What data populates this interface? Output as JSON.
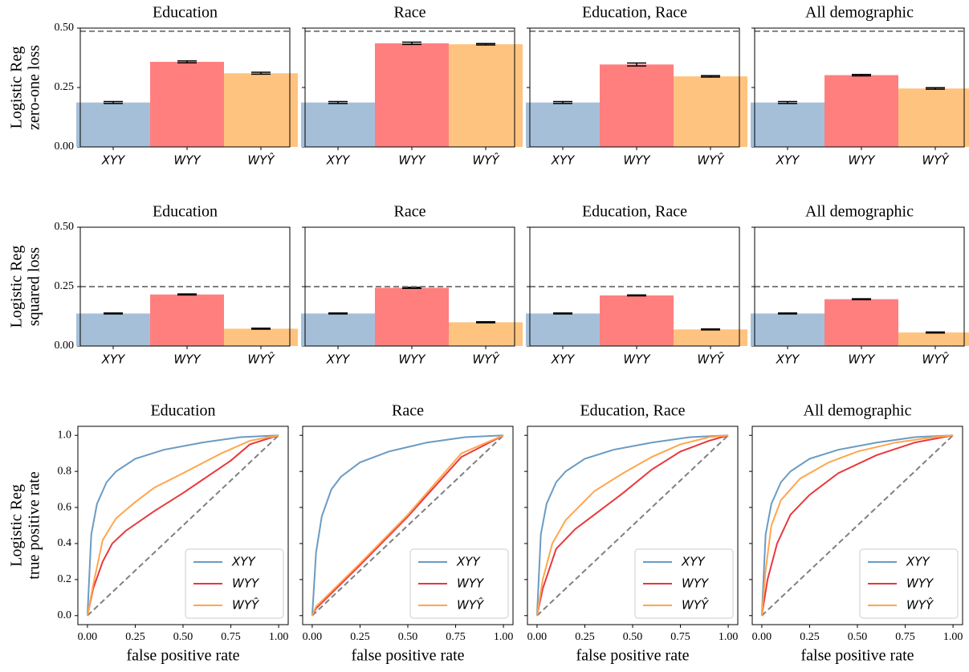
{
  "chart_data": [
    {
      "type": "bar",
      "title": "Education",
      "ylabel": [
        "Logistic Reg",
        "zero-one loss"
      ],
      "categories": [
        "XYY",
        "WYY",
        "WYŶ"
      ],
      "values": [
        0.187,
        0.358,
        0.31
      ],
      "errors": [
        0.004,
        0.004,
        0.004
      ],
      "colors": [
        "#a6bfd9",
        "#ff7f7f",
        "#ffc380"
      ],
      "ylim": [
        0,
        0.5
      ],
      "yticks": [
        {
          "value": 0,
          "label": "0.00"
        },
        0.25,
        {
          "value": 0.5,
          "label": "0.50"
        }
      ],
      "reference_line": 0.487
    },
    {
      "type": "bar",
      "title": "Race",
      "categories": [
        "XYY",
        "WYY",
        "WYŶ"
      ],
      "values": [
        0.187,
        0.436,
        0.432
      ],
      "errors": [
        0.004,
        0.005,
        0.003
      ],
      "colors": [
        "#a6bfd9",
        "#ff7f7f",
        "#ffc380"
      ],
      "ylim": [
        0,
        0.5
      ],
      "yticks": [
        {
          "value": 0,
          "label": "0.00"
        },
        0.25,
        {
          "value": 0.5,
          "label": "0.50"
        }
      ],
      "reference_line": 0.487
    },
    {
      "type": "bar",
      "title": "Education, Race",
      "categories": [
        "XYY",
        "WYY",
        "WYŶ"
      ],
      "values": [
        0.187,
        0.347,
        0.297
      ],
      "errors": [
        0.004,
        0.006,
        0.003
      ],
      "colors": [
        "#a6bfd9",
        "#ff7f7f",
        "#ffc380"
      ],
      "ylim": [
        0,
        0.5
      ],
      "yticks": [
        {
          "value": 0,
          "label": "0.00"
        },
        0.25,
        {
          "value": 0.5,
          "label": "0.50"
        }
      ],
      "reference_line": 0.487
    },
    {
      "type": "bar",
      "title": "All demographic",
      "categories": [
        "XYY",
        "WYY",
        "WYŶ"
      ],
      "values": [
        0.187,
        0.302,
        0.246
      ],
      "errors": [
        0.004,
        0.003,
        0.003
      ],
      "colors": [
        "#a6bfd9",
        "#ff7f7f",
        "#ffc380"
      ],
      "ylim": [
        0,
        0.5
      ],
      "yticks": [
        {
          "value": 0,
          "label": "0.00"
        },
        0.25,
        {
          "value": 0.5,
          "label": "0.50"
        }
      ],
      "reference_line": 0.487
    },
    {
      "type": "bar",
      "title": "Education",
      "ylabel": [
        "Logistic Reg",
        "squared loss"
      ],
      "categories": [
        "XYY",
        "WYY",
        "WYŶ"
      ],
      "values": [
        0.137,
        0.217,
        0.073
      ],
      "errors": [
        0.002,
        0.002,
        0.002
      ],
      "colors": [
        "#a6bfd9",
        "#ff7f7f",
        "#ffc380"
      ],
      "ylim": [
        0,
        0.5
      ],
      "yticks": [
        {
          "value": 0,
          "label": "0.00"
        },
        0.25,
        {
          "value": 0.5,
          "label": "0.50"
        }
      ],
      "reference_line": 0.25
    },
    {
      "type": "bar",
      "title": "Race",
      "categories": [
        "XYY",
        "WYY",
        "WYŶ"
      ],
      "values": [
        0.137,
        0.245,
        0.1
      ],
      "errors": [
        0.002,
        0.002,
        0.002
      ],
      "colors": [
        "#a6bfd9",
        "#ff7f7f",
        "#ffc380"
      ],
      "ylim": [
        0,
        0.5
      ],
      "yticks": [
        {
          "value": 0,
          "label": "0.00"
        },
        0.25,
        {
          "value": 0.5,
          "label": "0.50"
        }
      ],
      "reference_line": 0.25
    },
    {
      "type": "bar",
      "title": "Education, Race",
      "categories": [
        "XYY",
        "WYY",
        "WYŶ"
      ],
      "values": [
        0.137,
        0.213,
        0.07
      ],
      "errors": [
        0.002,
        0.002,
        0.002
      ],
      "colors": [
        "#a6bfd9",
        "#ff7f7f",
        "#ffc380"
      ],
      "ylim": [
        0,
        0.5
      ],
      "yticks": [
        {
          "value": 0,
          "label": "0.00"
        },
        0.25,
        {
          "value": 0.5,
          "label": "0.50"
        }
      ],
      "reference_line": 0.25
    },
    {
      "type": "bar",
      "title": "All demographic",
      "categories": [
        "XYY",
        "WYY",
        "WYŶ"
      ],
      "values": [
        0.137,
        0.197,
        0.057
      ],
      "errors": [
        0.002,
        0.002,
        0.002
      ],
      "colors": [
        "#a6bfd9",
        "#ff7f7f",
        "#ffc380"
      ],
      "ylim": [
        0,
        0.5
      ],
      "yticks": [
        {
          "value": 0,
          "label": "0.00"
        },
        0.25,
        {
          "value": 0.5,
          "label": "0.50"
        }
      ],
      "reference_line": 0.25
    },
    {
      "type": "line",
      "title": "Education",
      "ylabel": [
        "Logistic Reg",
        "true positive rate"
      ],
      "xlabel": "false positive rate",
      "xlim": [
        -0.05,
        1.05
      ],
      "ylim": [
        -0.05,
        1.05
      ],
      "xticks": [
        {
          "value": 0,
          "label": "0.00"
        },
        0.25,
        {
          "value": 0.5,
          "label": "0.50"
        },
        0.75,
        {
          "value": 1,
          "label": "1.00"
        }
      ],
      "yticks": [
        {
          "value": 0,
          "label": "0.0"
        },
        0.2,
        0.4,
        0.6,
        0.8,
        {
          "value": 1,
          "label": "1.0"
        }
      ],
      "diagonal": true,
      "legend": "lower right",
      "series": [
        {
          "name": "XYY",
          "color": "#6a9bc3",
          "x": [
            0,
            0.02,
            0.05,
            0.1,
            0.15,
            0.25,
            0.4,
            0.6,
            0.8,
            1
          ],
          "values": [
            0,
            0.45,
            0.62,
            0.74,
            0.8,
            0.87,
            0.92,
            0.96,
            0.99,
            1
          ]
        },
        {
          "name": "WYY",
          "color": "#e8383d",
          "x": [
            0,
            0.03,
            0.08,
            0.13,
            0.2,
            0.35,
            0.5,
            0.75,
            0.85,
            1
          ],
          "values": [
            0,
            0.15,
            0.3,
            0.4,
            0.47,
            0.58,
            0.68,
            0.86,
            0.95,
            1
          ]
        },
        {
          "name": "WYŶ",
          "color": "#ffa64d",
          "x": [
            0,
            0.03,
            0.08,
            0.15,
            0.25,
            0.35,
            0.5,
            0.7,
            0.85,
            1
          ],
          "values": [
            0,
            0.17,
            0.42,
            0.54,
            0.63,
            0.71,
            0.79,
            0.9,
            0.97,
            1
          ]
        }
      ]
    },
    {
      "type": "line",
      "title": "Race",
      "xlabel": "false positive rate",
      "xlim": [
        -0.05,
        1.05
      ],
      "ylim": [
        -0.05,
        1.05
      ],
      "xticks": [
        {
          "value": 0,
          "label": "0.00"
        },
        0.25,
        {
          "value": 0.5,
          "label": "0.50"
        },
        0.75,
        {
          "value": 1,
          "label": "1.00"
        }
      ],
      "yticks": [
        {
          "value": 0,
          "label": "0.0"
        },
        0.2,
        0.4,
        0.6,
        0.8,
        {
          "value": 1,
          "label": "1.0"
        }
      ],
      "diagonal": true,
      "legend": "lower right",
      "series": [
        {
          "name": "XYY",
          "color": "#6a9bc3",
          "x": [
            0,
            0.02,
            0.05,
            0.1,
            0.15,
            0.25,
            0.4,
            0.6,
            0.8,
            1
          ],
          "values": [
            0,
            0.35,
            0.55,
            0.7,
            0.77,
            0.85,
            0.91,
            0.96,
            0.99,
            1
          ]
        },
        {
          "name": "WYY",
          "color": "#e8383d",
          "x": [
            0,
            0.02,
            0.25,
            0.5,
            0.78,
            1
          ],
          "values": [
            0,
            0.04,
            0.28,
            0.55,
            0.88,
            1
          ]
        },
        {
          "name": "WYŶ",
          "color": "#ffa64d",
          "x": [
            0,
            0.02,
            0.25,
            0.5,
            0.78,
            1
          ],
          "values": [
            0,
            0.05,
            0.29,
            0.56,
            0.9,
            1
          ]
        }
      ]
    },
    {
      "type": "line",
      "title": "Education, Race",
      "xlabel": "false positive rate",
      "xlim": [
        -0.05,
        1.05
      ],
      "ylim": [
        -0.05,
        1.05
      ],
      "xticks": [
        {
          "value": 0,
          "label": "0.00"
        },
        0.25,
        {
          "value": 0.5,
          "label": "0.50"
        },
        0.75,
        {
          "value": 1,
          "label": "1.00"
        }
      ],
      "yticks": [
        {
          "value": 0,
          "label": "0.0"
        },
        0.2,
        0.4,
        0.6,
        0.8,
        {
          "value": 1,
          "label": "1.0"
        }
      ],
      "diagonal": true,
      "legend": "lower right",
      "series": [
        {
          "name": "XYY",
          "color": "#6a9bc3",
          "x": [
            0,
            0.02,
            0.05,
            0.1,
            0.15,
            0.25,
            0.4,
            0.6,
            0.8,
            1
          ],
          "values": [
            0,
            0.45,
            0.62,
            0.74,
            0.8,
            0.87,
            0.92,
            0.96,
            0.99,
            1
          ]
        },
        {
          "name": "WYY",
          "color": "#e8383d",
          "x": [
            0,
            0.03,
            0.1,
            0.2,
            0.3,
            0.45,
            0.6,
            0.75,
            0.9,
            1
          ],
          "values": [
            0,
            0.15,
            0.37,
            0.48,
            0.56,
            0.68,
            0.81,
            0.91,
            0.97,
            1
          ]
        },
        {
          "name": "WYŶ",
          "color": "#ffa64d",
          "x": [
            0,
            0.03,
            0.08,
            0.15,
            0.3,
            0.45,
            0.6,
            0.75,
            0.9,
            1
          ],
          "values": [
            0,
            0.2,
            0.4,
            0.53,
            0.69,
            0.79,
            0.88,
            0.95,
            0.99,
            1
          ]
        }
      ]
    },
    {
      "type": "line",
      "title": "All demographic",
      "xlabel": "false positive rate",
      "xlim": [
        -0.05,
        1.05
      ],
      "ylim": [
        -0.05,
        1.05
      ],
      "xticks": [
        {
          "value": 0,
          "label": "0.00"
        },
        0.25,
        {
          "value": 0.5,
          "label": "0.50"
        },
        0.75,
        {
          "value": 1,
          "label": "1.00"
        }
      ],
      "yticks": [
        {
          "value": 0,
          "label": "0.0"
        },
        0.2,
        0.4,
        0.6,
        0.8,
        {
          "value": 1,
          "label": "1.0"
        }
      ],
      "diagonal": true,
      "legend": "lower right",
      "series": [
        {
          "name": "XYY",
          "color": "#6a9bc3",
          "x": [
            0,
            0.02,
            0.05,
            0.1,
            0.15,
            0.25,
            0.4,
            0.6,
            0.8,
            1
          ],
          "values": [
            0,
            0.45,
            0.62,
            0.74,
            0.8,
            0.87,
            0.92,
            0.96,
            0.99,
            1
          ]
        },
        {
          "name": "WYY",
          "color": "#e8383d",
          "x": [
            0,
            0.03,
            0.08,
            0.15,
            0.25,
            0.4,
            0.6,
            0.8,
            1
          ],
          "values": [
            0,
            0.2,
            0.4,
            0.56,
            0.67,
            0.79,
            0.89,
            0.96,
            1
          ]
        },
        {
          "name": "WYŶ",
          "color": "#ffa64d",
          "x": [
            0,
            0.02,
            0.05,
            0.1,
            0.2,
            0.35,
            0.5,
            0.7,
            0.9,
            1
          ],
          "values": [
            0,
            0.25,
            0.5,
            0.64,
            0.76,
            0.85,
            0.91,
            0.96,
            0.99,
            1
          ]
        }
      ]
    }
  ]
}
